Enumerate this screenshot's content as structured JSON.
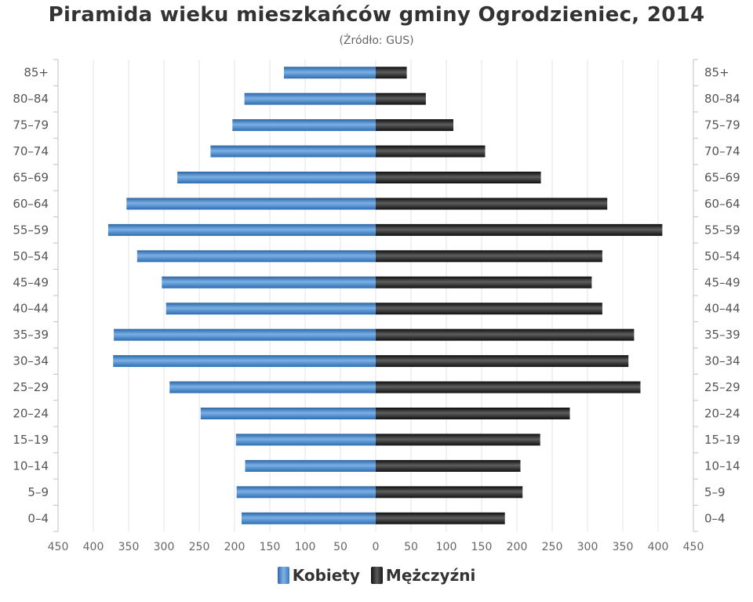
{
  "chart_data": {
    "type": "bar",
    "orientation": "horizontal",
    "title": "Piramida wieku mieszkańców gminy Ogrodzieniec, 2014",
    "subtitle": "(Źródło: GUS)",
    "categories": [
      "85+",
      "80–84",
      "75–79",
      "70–74",
      "65–69",
      "60–64",
      "55–59",
      "50–54",
      "45–49",
      "40–44",
      "35–39",
      "30–34",
      "25–29",
      "20–24",
      "15–19",
      "10–14",
      "5–9",
      "0–4"
    ],
    "series": [
      {
        "name": "Kobiety",
        "side": "left",
        "color": "#3a7bc0",
        "values": [
          130,
          186,
          203,
          234,
          281,
          353,
          379,
          338,
          303,
          297,
          371,
          372,
          292,
          248,
          198,
          185,
          197,
          190
        ]
      },
      {
        "name": "Mężczyźni",
        "side": "right",
        "color": "#1a1a1a",
        "values": [
          44,
          71,
          110,
          155,
          234,
          328,
          406,
          321,
          306,
          321,
          366,
          358,
          375,
          275,
          233,
          205,
          208,
          183
        ]
      }
    ],
    "xlim": [
      -450,
      450
    ],
    "xticks": [
      "450",
      "400",
      "350",
      "300",
      "250",
      "200",
      "150",
      "100",
      "50",
      "0",
      "50",
      "100",
      "150",
      "200",
      "250",
      "300",
      "350",
      "400",
      "450"
    ],
    "grid": true,
    "legend": "bottom-center"
  },
  "legend": {
    "kobiety": "Kobiety",
    "mezczyzni": "Mężczyźni"
  }
}
